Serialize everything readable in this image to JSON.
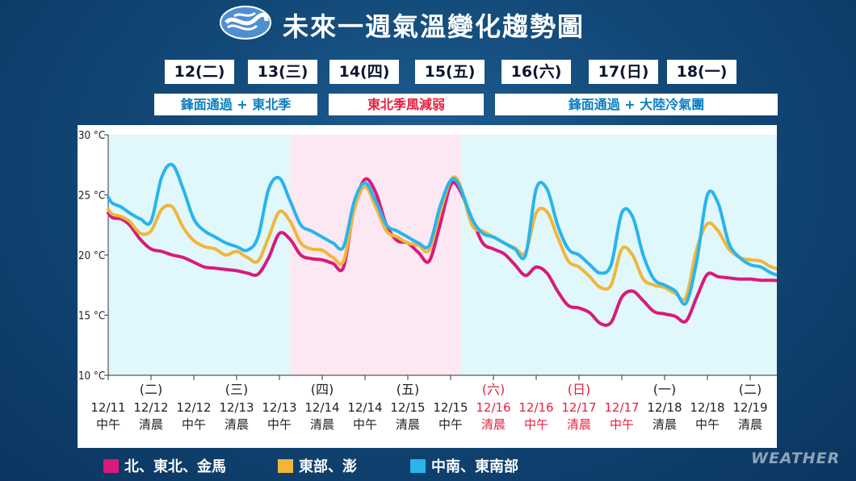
{
  "title": "未來一週氣溫變化趨勢圖",
  "days": [
    "12(二)",
    "13(三)",
    "14(四)",
    "15(五)",
    "16(六)",
    "17(日)",
    "18(一)"
  ],
  "events": [
    {
      "label": "鋒面通過 + 東北季",
      "color": "#0b7fbf",
      "bg": "#e0f7fb"
    },
    {
      "label": "東北季風減弱",
      "color": "#e8213f",
      "bg": "#fce8f3"
    },
    {
      "label": "鋒面通過 + 大陸冷氣團",
      "color": "#0b7fbf",
      "bg": "#e0f7fb"
    }
  ],
  "watermark": "WEATHER",
  "chart_data": {
    "type": "line",
    "ylim": [
      10,
      30
    ],
    "yticks": [
      "10 °C",
      "15 °C",
      "20 °C",
      "25 °C",
      "30 °C"
    ],
    "grid": false,
    "legend": "bottom",
    "categories": [
      {
        "top": "",
        "date": "12/11",
        "time": "中午",
        "red": false
      },
      {
        "top": "(二)",
        "date": "12/12",
        "time": "清晨",
        "red": false
      },
      {
        "top": "",
        "date": "12/12",
        "time": "中午",
        "red": false
      },
      {
        "top": "(三)",
        "date": "12/13",
        "time": "清晨",
        "red": false
      },
      {
        "top": "",
        "date": "12/13",
        "time": "中午",
        "red": false
      },
      {
        "top": "(四)",
        "date": "12/14",
        "time": "清晨",
        "red": false
      },
      {
        "top": "",
        "date": "12/14",
        "time": "中午",
        "red": false
      },
      {
        "top": "(五)",
        "date": "12/15",
        "time": "清晨",
        "red": false
      },
      {
        "top": "",
        "date": "12/15",
        "time": "中午",
        "red": false
      },
      {
        "top": "(六)",
        "date": "12/16",
        "time": "清晨",
        "red": true
      },
      {
        "top": "",
        "date": "12/16",
        "time": "中午",
        "red": true
      },
      {
        "top": "(日)",
        "date": "12/17",
        "time": "清晨",
        "red": true
      },
      {
        "top": "",
        "date": "12/17",
        "time": "中午",
        "red": true
      },
      {
        "top": "(一)",
        "date": "12/18",
        "time": "清晨",
        "red": false
      },
      {
        "top": "",
        "date": "12/18",
        "time": "中午",
        "red": false
      },
      {
        "top": "(二)",
        "date": "12/19",
        "time": "清晨",
        "red": false
      }
    ],
    "series": [
      {
        "name": "北、東北、金馬",
        "color": "#d81b7a",
        "x": [
          0,
          0.1,
          0.3,
          0.5,
          0.75,
          1,
          1.25,
          1.5,
          1.75,
          2,
          2.25,
          2.5,
          2.75,
          3,
          3.25,
          3.5,
          3.75,
          4,
          4.25,
          4.5,
          4.75,
          5,
          5.25,
          5.5,
          5.75,
          6,
          6.25,
          6.5,
          6.75,
          7,
          7.25,
          7.5,
          7.75,
          8,
          8.2,
          8.5,
          8.75,
          9,
          9.25,
          9.5,
          9.75,
          10,
          10.25,
          10.5,
          10.75,
          11,
          11.25,
          11.5,
          11.75,
          12,
          12.25,
          12.5,
          12.75,
          13,
          13.25,
          13.5,
          13.75,
          14,
          14.25,
          14.5,
          14.75,
          15,
          15.25,
          15.5,
          15.9
        ],
        "values": [
          23.5,
          23.1,
          23.0,
          22.5,
          21.3,
          20.5,
          20.3,
          20.0,
          19.8,
          19.4,
          19.0,
          18.9,
          18.8,
          18.7,
          18.5,
          18.4,
          19.8,
          21.8,
          21.3,
          20.0,
          19.7,
          19.6,
          19.3,
          19.0,
          24.0,
          26.3,
          25.2,
          22.5,
          21.2,
          21.0,
          20.2,
          19.5,
          22.5,
          25.8,
          25.5,
          23.0,
          21.0,
          20.5,
          20.1,
          19.2,
          18.3,
          19.0,
          18.5,
          17.0,
          15.8,
          15.6,
          15.2,
          14.3,
          14.4,
          16.5,
          17.0,
          16.2,
          15.3,
          15.1,
          14.9,
          14.5,
          16.5,
          18.4,
          18.2,
          18.1,
          18.0,
          18.0,
          17.9,
          17.9,
          17.8
        ]
      },
      {
        "name": "東部、澎",
        "color": "#f0b63c",
        "x": [
          0,
          0.1,
          0.3,
          0.5,
          0.75,
          1,
          1.25,
          1.5,
          1.75,
          2,
          2.25,
          2.5,
          2.75,
          3,
          3.25,
          3.5,
          3.75,
          4,
          4.25,
          4.5,
          4.75,
          5,
          5.25,
          5.5,
          5.75,
          6,
          6.25,
          6.5,
          6.75,
          7,
          7.25,
          7.5,
          7.75,
          8,
          8.2,
          8.5,
          8.75,
          9,
          9.25,
          9.5,
          9.75,
          10,
          10.25,
          10.5,
          10.75,
          11,
          11.25,
          11.5,
          11.75,
          12,
          12.25,
          12.5,
          12.75,
          13,
          13.25,
          13.5,
          13.75,
          14,
          14.25,
          14.5,
          14.75,
          15,
          15.25,
          15.5,
          15.9
        ],
        "values": [
          23.8,
          23.4,
          23.2,
          22.8,
          21.8,
          22.0,
          23.8,
          24.0,
          22.3,
          21.2,
          20.7,
          20.5,
          20.0,
          20.3,
          19.8,
          19.5,
          21.5,
          23.6,
          22.8,
          21.0,
          20.5,
          20.4,
          19.8,
          19.5,
          23.8,
          25.7,
          24.0,
          22.0,
          21.5,
          21.0,
          20.8,
          20.4,
          23.5,
          26.2,
          26.0,
          22.5,
          22.0,
          21.5,
          21.0,
          20.6,
          20.2,
          23.5,
          23.6,
          21.5,
          19.5,
          19.0,
          18.2,
          17.3,
          17.5,
          20.5,
          20.0,
          18.0,
          17.5,
          17.3,
          16.8,
          16.5,
          20.5,
          22.6,
          22.0,
          20.5,
          19.8,
          19.6,
          19.5,
          19.0,
          18.6
        ]
      },
      {
        "name": "中南、東南部",
        "color": "#29b4ec",
        "x": [
          0,
          0.1,
          0.3,
          0.5,
          0.75,
          1,
          1.25,
          1.5,
          1.75,
          2,
          2.25,
          2.5,
          2.75,
          3,
          3.25,
          3.5,
          3.75,
          4,
          4.25,
          4.5,
          4.75,
          5,
          5.25,
          5.5,
          5.75,
          6,
          6.25,
          6.5,
          6.75,
          7,
          7.25,
          7.5,
          7.75,
          8,
          8.2,
          8.5,
          8.75,
          9,
          9.25,
          9.5,
          9.75,
          10,
          10.25,
          10.5,
          10.75,
          11,
          11.25,
          11.5,
          11.75,
          12,
          12.25,
          12.5,
          12.75,
          13,
          13.25,
          13.5,
          13.75,
          14,
          14.25,
          14.5,
          14.75,
          15,
          15.25,
          15.5,
          15.9
        ],
        "values": [
          24.8,
          24.3,
          24.0,
          23.5,
          23.0,
          22.8,
          26.5,
          27.5,
          25.5,
          23.0,
          22.0,
          21.5,
          21.0,
          20.7,
          20.4,
          21.5,
          25.5,
          26.4,
          24.5,
          22.5,
          22.0,
          21.5,
          21.0,
          20.7,
          24.5,
          26.0,
          24.5,
          22.5,
          22.0,
          21.5,
          21.0,
          20.8,
          24.0,
          26.2,
          25.8,
          23.0,
          21.8,
          21.5,
          21.0,
          20.5,
          20.0,
          25.5,
          25.5,
          22.5,
          20.5,
          20.0,
          19.2,
          18.5,
          19.2,
          23.5,
          23.2,
          20.0,
          18.0,
          17.5,
          17.0,
          16.0,
          19.5,
          25.0,
          24.3,
          21.0,
          19.8,
          19.2,
          19.0,
          18.5,
          18.0
        ]
      }
    ]
  }
}
